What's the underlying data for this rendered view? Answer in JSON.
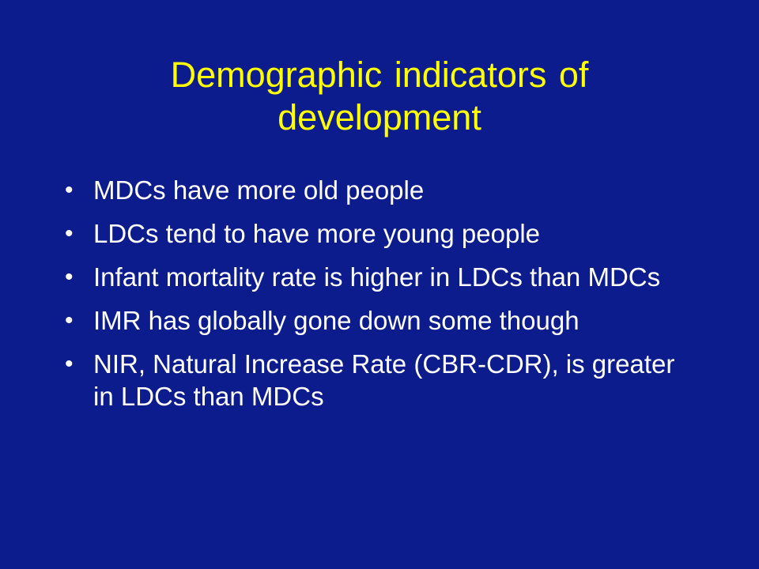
{
  "slide": {
    "title": "Demographic indicators of development",
    "bullet_symbol": "•",
    "bullets": [
      "MDCs have more old people",
      "LDCs tend to have more young people",
      "Infant mortality rate is higher in LDCs than MDCs",
      "IMR has globally gone down some though",
      "NIR, Natural Increase Rate (CBR-CDR), is greater in LDCs than MDCs"
    ]
  },
  "colors": {
    "background": "#0c1c8c",
    "title": "#ffff00",
    "text": "#ffffff"
  }
}
